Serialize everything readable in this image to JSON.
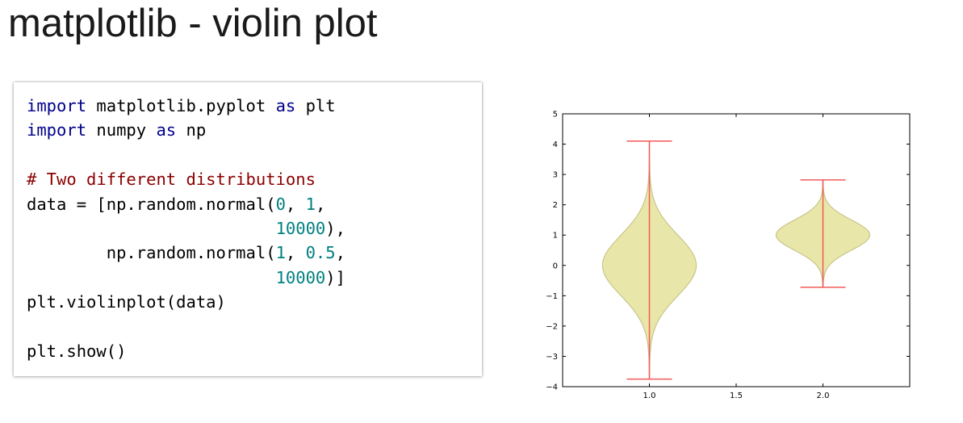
{
  "page": {
    "title": "matplotlib - violin plot"
  },
  "code": {
    "lines": [
      [
        {
          "t": "import",
          "c": "kw"
        },
        {
          "t": " matplotlib.pyplot ",
          "c": ""
        },
        {
          "t": "as",
          "c": "kw"
        },
        {
          "t": " plt",
          "c": ""
        }
      ],
      [
        {
          "t": "import",
          "c": "kw"
        },
        {
          "t": " numpy ",
          "c": ""
        },
        {
          "t": "as",
          "c": "kw"
        },
        {
          "t": " np",
          "c": ""
        }
      ],
      [],
      [
        {
          "t": "# Two different distributions",
          "c": "cm"
        }
      ],
      [
        {
          "t": "data = [np.random.normal(",
          "c": ""
        },
        {
          "t": "0",
          "c": "num"
        },
        {
          "t": ", ",
          "c": ""
        },
        {
          "t": "1",
          "c": "num"
        },
        {
          "t": ",",
          "c": ""
        }
      ],
      [
        {
          "t": "                         ",
          "c": ""
        },
        {
          "t": "10000",
          "c": "num"
        },
        {
          "t": "),",
          "c": ""
        }
      ],
      [
        {
          "t": "        np.random.normal(",
          "c": ""
        },
        {
          "t": "1",
          "c": "num"
        },
        {
          "t": ", ",
          "c": ""
        },
        {
          "t": "0.5",
          "c": "num"
        },
        {
          "t": ",",
          "c": ""
        }
      ],
      [
        {
          "t": "                         ",
          "c": ""
        },
        {
          "t": "10000",
          "c": "num"
        },
        {
          "t": ")]",
          "c": ""
        }
      ],
      [
        {
          "t": "plt.violinplot(data)",
          "c": ""
        }
      ],
      [],
      [
        {
          "t": "plt.show()",
          "c": ""
        }
      ]
    ]
  },
  "chart_data": {
    "type": "violin",
    "title": "",
    "xlabel": "",
    "ylabel": "",
    "xlim": [
      0.5,
      2.5
    ],
    "ylim": [
      -4,
      5
    ],
    "xticks": [
      "1.0",
      "1.5",
      "2.0"
    ],
    "xtick_values": [
      1.0,
      1.5,
      2.0
    ],
    "yticks": [
      "−4",
      "−3",
      "−2",
      "−1",
      "0",
      "1",
      "2",
      "3",
      "4",
      "5"
    ],
    "ytick_values": [
      -4,
      -3,
      -2,
      -1,
      0,
      1,
      2,
      3,
      4,
      5
    ],
    "grid": false,
    "colors": {
      "body": "#e8e6a8",
      "edge": "#c8c68c",
      "lines": "#f25a5a"
    },
    "series": [
      {
        "position": 1.0,
        "min": -3.75,
        "max": 4.1,
        "kde_peak_y": 0.0,
        "sd": 1.0
      },
      {
        "position": 2.0,
        "min": -0.72,
        "max": 2.82,
        "kde_peak_y": 1.0,
        "sd": 0.5
      }
    ]
  }
}
